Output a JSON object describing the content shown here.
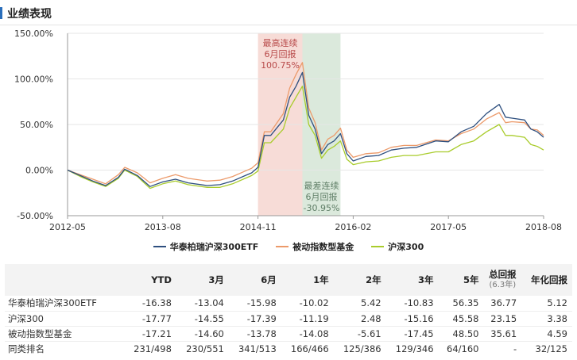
{
  "page": {
    "title": "业绩表现"
  },
  "colors": {
    "fund": "#2e4f7f",
    "passive": "#ec9a6a",
    "index": "#a9cc2c",
    "best_band": "#f7dcd7",
    "worst_band": "#dbe9dc",
    "best_text": "#b84a4a",
    "worst_text": "#5f7e66",
    "axis": "#333333",
    "grid": "#e6e6e6"
  },
  "chart_data": {
    "type": "line",
    "x_range": [
      "2012-05",
      "2018-08"
    ],
    "ylim": [
      -50,
      150
    ],
    "y_ticks": [
      150,
      100,
      50,
      0,
      -50
    ],
    "y_tick_labels": [
      "150.00%",
      "100.00%",
      "50.00%",
      "0.00%",
      "-50.00%"
    ],
    "x_ticks": [
      "2012-05",
      "2013-08",
      "2014-11",
      "2016-02",
      "2017-05",
      "2018-08"
    ],
    "grid": true,
    "legend_position": "bottom-center",
    "series": [
      {
        "name": "华泰柏瑞沪深300ETF",
        "points": [
          [
            "2012-05",
            0
          ],
          [
            "2012-07",
            -6
          ],
          [
            "2012-09",
            -12
          ],
          [
            "2012-11",
            -17
          ],
          [
            "2013-01",
            -8
          ],
          [
            "2013-02",
            1
          ],
          [
            "2013-04",
            -6
          ],
          [
            "2013-06",
            -18
          ],
          [
            "2013-08",
            -13
          ],
          [
            "2013-10",
            -10
          ],
          [
            "2013-12",
            -14
          ],
          [
            "2014-03",
            -17
          ],
          [
            "2014-05",
            -16
          ],
          [
            "2014-07",
            -12
          ],
          [
            "2014-09",
            -6
          ],
          [
            "2014-10",
            -3
          ],
          [
            "2014-11",
            3
          ],
          [
            "2014-12",
            38
          ],
          [
            "2015-01",
            38
          ],
          [
            "2015-03",
            55
          ],
          [
            "2015-04",
            80
          ],
          [
            "2015-05",
            92
          ],
          [
            "2015-06",
            107
          ],
          [
            "2015-07",
            60
          ],
          [
            "2015-08",
            45
          ],
          [
            "2015-09",
            18
          ],
          [
            "2015-10",
            28
          ],
          [
            "2015-11",
            32
          ],
          [
            "2015-12",
            40
          ],
          [
            "2016-01",
            18
          ],
          [
            "2016-02",
            10
          ],
          [
            "2016-04",
            15
          ],
          [
            "2016-06",
            16
          ],
          [
            "2016-08",
            22
          ],
          [
            "2016-10",
            24
          ],
          [
            "2016-12",
            25
          ],
          [
            "2017-03",
            32
          ],
          [
            "2017-05",
            31
          ],
          [
            "2017-07",
            42
          ],
          [
            "2017-09",
            48
          ],
          [
            "2017-11",
            62
          ],
          [
            "2018-01",
            72
          ],
          [
            "2018-02",
            58
          ],
          [
            "2018-03",
            57
          ],
          [
            "2018-05",
            55
          ],
          [
            "2018-06",
            45
          ],
          [
            "2018-07",
            42
          ],
          [
            "2018-08",
            36
          ]
        ]
      },
      {
        "name": "被动指数型基金",
        "points": [
          [
            "2012-05",
            0
          ],
          [
            "2012-07",
            -5
          ],
          [
            "2012-09",
            -10
          ],
          [
            "2012-11",
            -15
          ],
          [
            "2013-01",
            -5
          ],
          [
            "2013-02",
            3
          ],
          [
            "2013-04",
            -3
          ],
          [
            "2013-06",
            -14
          ],
          [
            "2013-08",
            -9
          ],
          [
            "2013-10",
            -5
          ],
          [
            "2013-12",
            -9
          ],
          [
            "2014-03",
            -12
          ],
          [
            "2014-05",
            -11
          ],
          [
            "2014-07",
            -7
          ],
          [
            "2014-09",
            -1
          ],
          [
            "2014-10",
            2
          ],
          [
            "2014-11",
            8
          ],
          [
            "2014-12",
            42
          ],
          [
            "2015-01",
            42
          ],
          [
            "2015-03",
            62
          ],
          [
            "2015-04",
            90
          ],
          [
            "2015-05",
            105
          ],
          [
            "2015-06",
            118
          ],
          [
            "2015-07",
            68
          ],
          [
            "2015-08",
            52
          ],
          [
            "2015-09",
            22
          ],
          [
            "2015-10",
            34
          ],
          [
            "2015-11",
            38
          ],
          [
            "2015-12",
            46
          ],
          [
            "2016-01",
            22
          ],
          [
            "2016-02",
            14
          ],
          [
            "2016-04",
            18
          ],
          [
            "2016-06",
            19
          ],
          [
            "2016-08",
            25
          ],
          [
            "2016-10",
            27
          ],
          [
            "2016-12",
            27
          ],
          [
            "2017-03",
            33
          ],
          [
            "2017-05",
            32
          ],
          [
            "2017-07",
            40
          ],
          [
            "2017-09",
            45
          ],
          [
            "2017-11",
            56
          ],
          [
            "2018-01",
            63
          ],
          [
            "2018-02",
            52
          ],
          [
            "2018-03",
            53
          ],
          [
            "2018-05",
            52
          ],
          [
            "2018-06",
            45
          ],
          [
            "2018-07",
            44
          ],
          [
            "2018-08",
            38
          ]
        ]
      },
      {
        "name": "沪深300",
        "points": [
          [
            "2012-05",
            0
          ],
          [
            "2012-07",
            -7
          ],
          [
            "2012-09",
            -13
          ],
          [
            "2012-11",
            -18
          ],
          [
            "2013-01",
            -9
          ],
          [
            "2013-02",
            0
          ],
          [
            "2013-04",
            -7
          ],
          [
            "2013-06",
            -20
          ],
          [
            "2013-08",
            -15
          ],
          [
            "2013-10",
            -12
          ],
          [
            "2013-12",
            -16
          ],
          [
            "2014-03",
            -19
          ],
          [
            "2014-05",
            -19
          ],
          [
            "2014-07",
            -15
          ],
          [
            "2014-09",
            -9
          ],
          [
            "2014-10",
            -6
          ],
          [
            "2014-11",
            -1
          ],
          [
            "2014-12",
            30
          ],
          [
            "2015-01",
            30
          ],
          [
            "2015-03",
            45
          ],
          [
            "2015-04",
            68
          ],
          [
            "2015-05",
            80
          ],
          [
            "2015-06",
            92
          ],
          [
            "2015-07",
            50
          ],
          [
            "2015-08",
            38
          ],
          [
            "2015-09",
            13
          ],
          [
            "2015-10",
            22
          ],
          [
            "2015-11",
            26
          ],
          [
            "2015-12",
            32
          ],
          [
            "2016-01",
            12
          ],
          [
            "2016-02",
            6
          ],
          [
            "2016-04",
            9
          ],
          [
            "2016-06",
            10
          ],
          [
            "2016-08",
            14
          ],
          [
            "2016-10",
            16
          ],
          [
            "2016-12",
            16
          ],
          [
            "2017-03",
            20
          ],
          [
            "2017-05",
            20
          ],
          [
            "2017-07",
            28
          ],
          [
            "2017-09",
            32
          ],
          [
            "2017-11",
            42
          ],
          [
            "2018-01",
            50
          ],
          [
            "2018-02",
            38
          ],
          [
            "2018-03",
            38
          ],
          [
            "2018-05",
            36
          ],
          [
            "2018-06",
            28
          ],
          [
            "2018-07",
            26
          ],
          [
            "2018-08",
            22
          ]
        ]
      }
    ],
    "bands": [
      {
        "kind": "best",
        "from": "2014-11",
        "to": "2015-06",
        "label_lines": [
          "最高连续",
          "6月回报",
          "100.75%"
        ]
      },
      {
        "kind": "worst",
        "from": "2015-06",
        "to": "2015-12",
        "label_lines": [
          "最差连续",
          "6月回报",
          "-30.95%"
        ]
      }
    ]
  },
  "table": {
    "headers": [
      "",
      "YTD",
      "3月",
      "6月",
      "1年",
      "2年",
      "3年",
      "5年",
      "总回报",
      "年化回报"
    ],
    "total_sub": "(6.3年)",
    "rows": [
      [
        "华泰柏瑞沪深300ETF",
        "-16.38",
        "-13.04",
        "-15.98",
        "-10.02",
        "5.42",
        "-10.83",
        "56.35",
        "36.77",
        "5.12"
      ],
      [
        "沪深300",
        "-17.77",
        "-14.55",
        "-17.39",
        "-11.19",
        "2.48",
        "-15.16",
        "45.58",
        "23.15",
        "3.38"
      ],
      [
        "被动指数型基金",
        "-17.21",
        "-14.60",
        "-13.78",
        "-14.08",
        "-5.61",
        "-17.45",
        "48.50",
        "35.61",
        "4.59"
      ],
      [
        "同类排名",
        "231/498",
        "230/551",
        "341/513",
        "166/466",
        "125/386",
        "129/346",
        "64/160",
        "-",
        "32/125"
      ]
    ]
  }
}
